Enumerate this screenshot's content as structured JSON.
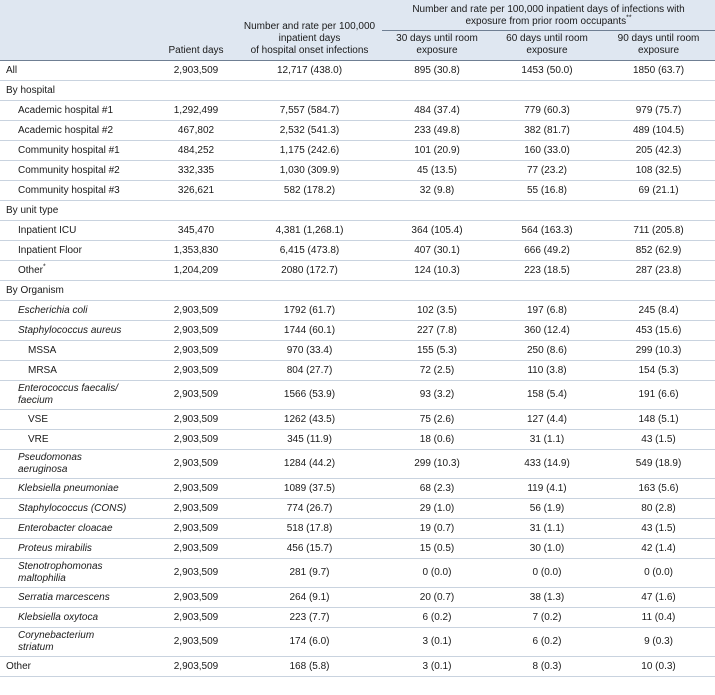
{
  "table": {
    "header": {
      "patient_days": "Patient days",
      "onset": [
        "Number and rate per 100,000",
        "inpatient days",
        "of hospital onset infections"
      ],
      "group": {
        "lines": [
          "Number and rate per 100,000 inpatient days of infections with",
          "exposure from prior room occupants"
        ],
        "note": "**"
      },
      "sub": [
        [
          "30 days until room",
          "exposure"
        ],
        [
          "60 days until room",
          "exposure"
        ],
        [
          "90 days until room",
          "exposure"
        ]
      ]
    },
    "rows": [
      {
        "label": [
          "All"
        ],
        "level": 0,
        "values": [
          "2,903,509",
          "12,717 (438.0)",
          "895 (30.8)",
          "1453 (50.0)",
          "1850 (63.7)"
        ]
      },
      {
        "label": [
          "By hospital"
        ],
        "section": true
      },
      {
        "label": [
          "Academic hospital #1"
        ],
        "level": 1,
        "values": [
          "1,292,499",
          "7,557 (584.7)",
          "484 (37.4)",
          "779 (60.3)",
          "979 (75.7)"
        ]
      },
      {
        "label": [
          "Academic hospital #2"
        ],
        "level": 1,
        "values": [
          "467,802",
          "2,532 (541.3)",
          "233 (49.8)",
          "382 (81.7)",
          "489 (104.5)"
        ]
      },
      {
        "label": [
          "Community hospital #1"
        ],
        "level": 1,
        "values": [
          "484,252",
          "1,175 (242.6)",
          "101 (20.9)",
          "160 (33.0)",
          "205 (42.3)"
        ]
      },
      {
        "label": [
          "Community hospital #2"
        ],
        "level": 1,
        "values": [
          "332,335",
          "1,030 (309.9)",
          "45 (13.5)",
          "77 (23.2)",
          "108 (32.5)"
        ]
      },
      {
        "label": [
          "Community hospital #3"
        ],
        "level": 1,
        "values": [
          "326,621",
          "582 (178.2)",
          "32 (9.8)",
          "55 (16.8)",
          "69 (21.1)"
        ]
      },
      {
        "label": [
          "By unit type"
        ],
        "section": true
      },
      {
        "label": [
          "Inpatient ICU"
        ],
        "level": 1,
        "values": [
          "345,470",
          "4,381 (1,268.1)",
          "364 (105.4)",
          "564 (163.3)",
          "711 (205.8)"
        ]
      },
      {
        "label": [
          "Inpatient Floor"
        ],
        "level": 1,
        "values": [
          "1,353,830",
          "6,415 (473.8)",
          "407 (30.1)",
          "666 (49.2)",
          "852 (62.9)"
        ]
      },
      {
        "label": [
          "Other"
        ],
        "note": "*",
        "level": 1,
        "values": [
          "1,204,209",
          "2080 (172.7)",
          "124 (10.3)",
          "223 (18.5)",
          "287 (23.8)"
        ]
      },
      {
        "label": [
          "By Organism"
        ],
        "section": true
      },
      {
        "label": [
          "Escherichia coli"
        ],
        "level": 1,
        "italic": true,
        "values": [
          "2,903,509",
          "1792 (61.7)",
          "102 (3.5)",
          "197 (6.8)",
          "245 (8.4)"
        ]
      },
      {
        "label": [
          "Staphylococcus aureus"
        ],
        "level": 1,
        "italic": true,
        "values": [
          "2,903,509",
          "1744 (60.1)",
          "227 (7.8)",
          "360 (12.4)",
          "453 (15.6)"
        ]
      },
      {
        "label": [
          "MSSA"
        ],
        "level": 2,
        "values": [
          "2,903,509",
          "970 (33.4)",
          "155 (5.3)",
          "250 (8.6)",
          "299 (10.3)"
        ]
      },
      {
        "label": [
          "MRSA"
        ],
        "level": 2,
        "values": [
          "2,903,509",
          "804 (27.7)",
          "72 (2.5)",
          "110 (3.8)",
          "154 (5.3)"
        ]
      },
      {
        "label": [
          "Enterococcus faecalis/",
          "faecium"
        ],
        "level": 1,
        "italic": true,
        "values": [
          "2,903,509",
          "1566 (53.9)",
          "93 (3.2)",
          "158 (5.4)",
          "191 (6.6)"
        ]
      },
      {
        "label": [
          "VSE"
        ],
        "level": 2,
        "values": [
          "2,903,509",
          "1262 (43.5)",
          "75 (2.6)",
          "127 (4.4)",
          "148 (5.1)"
        ]
      },
      {
        "label": [
          "VRE"
        ],
        "level": 2,
        "values": [
          "2,903,509",
          "345 (11.9)",
          "18 (0.6)",
          "31 (1.1)",
          "43 (1.5)"
        ]
      },
      {
        "label": [
          "Pseudomonas",
          "aeruginosa"
        ],
        "level": 1,
        "italic": true,
        "values": [
          "2,903,509",
          "1284 (44.2)",
          "299 (10.3)",
          "433 (14.9)",
          "549 (18.9)"
        ]
      },
      {
        "label": [
          "Klebsiella pneumoniae"
        ],
        "level": 1,
        "italic": true,
        "values": [
          "2,903,509",
          "1089 (37.5)",
          "68 (2.3)",
          "119 (4.1)",
          "163 (5.6)"
        ]
      },
      {
        "label": [
          "Staphylococcus (CONS)"
        ],
        "level": 1,
        "italic": true,
        "values": [
          "2,903,509",
          "774 (26.7)",
          "29 (1.0)",
          "56 (1.9)",
          "80 (2.8)"
        ]
      },
      {
        "label": [
          "Enterobacter cloacae"
        ],
        "level": 1,
        "italic": true,
        "values": [
          "2,903,509",
          "518 (17.8)",
          "19 (0.7)",
          "31 (1.1)",
          "43 (1.5)"
        ]
      },
      {
        "label": [
          "Proteus mirabilis"
        ],
        "level": 1,
        "italic": true,
        "values": [
          "2,903,509",
          "456 (15.7)",
          "15 (0.5)",
          "30 (1.0)",
          "42 (1.4)"
        ]
      },
      {
        "label": [
          "Stenotrophomonas",
          "maltophilia"
        ],
        "level": 1,
        "italic": true,
        "values": [
          "2,903,509",
          "281 (9.7)",
          "0 (0.0)",
          "0 (0.0)",
          "0 (0.0)"
        ]
      },
      {
        "label": [
          "Serratia marcescens"
        ],
        "level": 1,
        "italic": true,
        "values": [
          "2,903,509",
          "264 (9.1)",
          "20 (0.7)",
          "38 (1.3)",
          "47 (1.6)"
        ]
      },
      {
        "label": [
          "Klebsiella oxytoca"
        ],
        "level": 1,
        "italic": true,
        "values": [
          "2,903,509",
          "223 (7.7)",
          "6 (0.2)",
          "7 (0.2)",
          "11 (0.4)"
        ]
      },
      {
        "label": [
          "Corynebacterium",
          "striatum"
        ],
        "level": 1,
        "italic": true,
        "values": [
          "2,903,509",
          "174 (6.0)",
          "3 (0.1)",
          "6 (0.2)",
          "9 (0.3)"
        ]
      },
      {
        "label": [
          "Other"
        ],
        "level": 0,
        "values": [
          "2,903,509",
          "168 (5.8)",
          "3 (0.1)",
          "8 (0.3)",
          "10 (0.3)"
        ]
      }
    ]
  }
}
